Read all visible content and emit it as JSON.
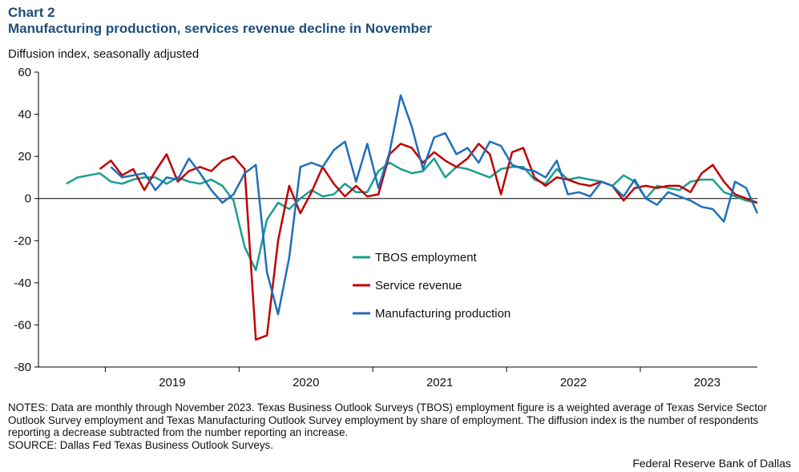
{
  "header": {
    "chart_label": "Chart 2",
    "title": "Manufacturing production, services revenue decline in November",
    "y_unit": "Diffusion index, seasonally adjusted"
  },
  "footer": {
    "notes": "NOTES: Data are monthly through November 2023. Texas Business Outlook Surveys (TBOS) employment figure is a weighted average of Texas Service Sector Outlook Survey employment and Texas Manufacturing Outlook Survey employment by share of employment. The diffusion index is the number of respondents reporting a decrease subtracted from the number reporting an increase.",
    "source": "SOURCE: Dallas Fed Texas Business Outlook Surveys.",
    "credit": "Federal Reserve Bank of Dallas"
  },
  "chart_data": {
    "type": "line",
    "ylim": [
      -80,
      60
    ],
    "yticks": [
      60,
      40,
      20,
      0,
      -20,
      -40,
      -60,
      -80
    ],
    "x_start": "2018-07",
    "x_end": "2023-11",
    "year_labels": [
      "2019",
      "2020",
      "2021",
      "2022",
      "2023"
    ],
    "grid": false,
    "legend_position": "center",
    "series": [
      {
        "name": "TBOS employment",
        "color": "#1a9e8f",
        "values": [
          7,
          10,
          11,
          12,
          8,
          7,
          9,
          10,
          10,
          7,
          10,
          8,
          7,
          9,
          6,
          -1,
          -23,
          -34,
          -10,
          -2,
          -5,
          0,
          4,
          1,
          2,
          7,
          3,
          3,
          13,
          17,
          14,
          12,
          13,
          19,
          10,
          15,
          14,
          12,
          10,
          14,
          15,
          15,
          9,
          7,
          14,
          9,
          10,
          9,
          8,
          6,
          11,
          8,
          0,
          6,
          5,
          4,
          8,
          9,
          9,
          3,
          1,
          -1,
          -2
        ]
      },
      {
        "name": "Service revenue",
        "color": "#c00000",
        "values": [
          14,
          18,
          11,
          14,
          4,
          13,
          21,
          8,
          13,
          15,
          13,
          18,
          20,
          14,
          -67,
          -65,
          -20,
          6,
          -7,
          3,
          15,
          7,
          1,
          6,
          1,
          2,
          21,
          26,
          24,
          17,
          22,
          18,
          15,
          19,
          26,
          21,
          2,
          22,
          24,
          10,
          6,
          10,
          9,
          7,
          6,
          8,
          6,
          -1,
          5,
          6,
          5,
          6,
          6,
          3,
          12,
          16,
          8,
          2,
          0,
          -2
        ]
      },
      {
        "name": "Manufacturing production",
        "color": "#1f6fb8",
        "values": [
          15,
          10,
          11,
          12,
          4,
          10,
          9,
          19,
          12,
          4,
          -2,
          2,
          12,
          16,
          -35,
          -55,
          -28,
          15,
          17,
          15,
          23,
          27,
          8,
          26,
          5,
          22,
          49,
          34,
          14,
          29,
          31,
          21,
          24,
          17,
          27,
          25,
          16,
          14,
          13,
          10,
          18,
          2,
          3,
          1,
          8,
          6,
          1,
          9,
          0,
          -3,
          3,
          1,
          -1,
          -4,
          -5,
          -11,
          8,
          5,
          -7
        ]
      }
    ]
  }
}
